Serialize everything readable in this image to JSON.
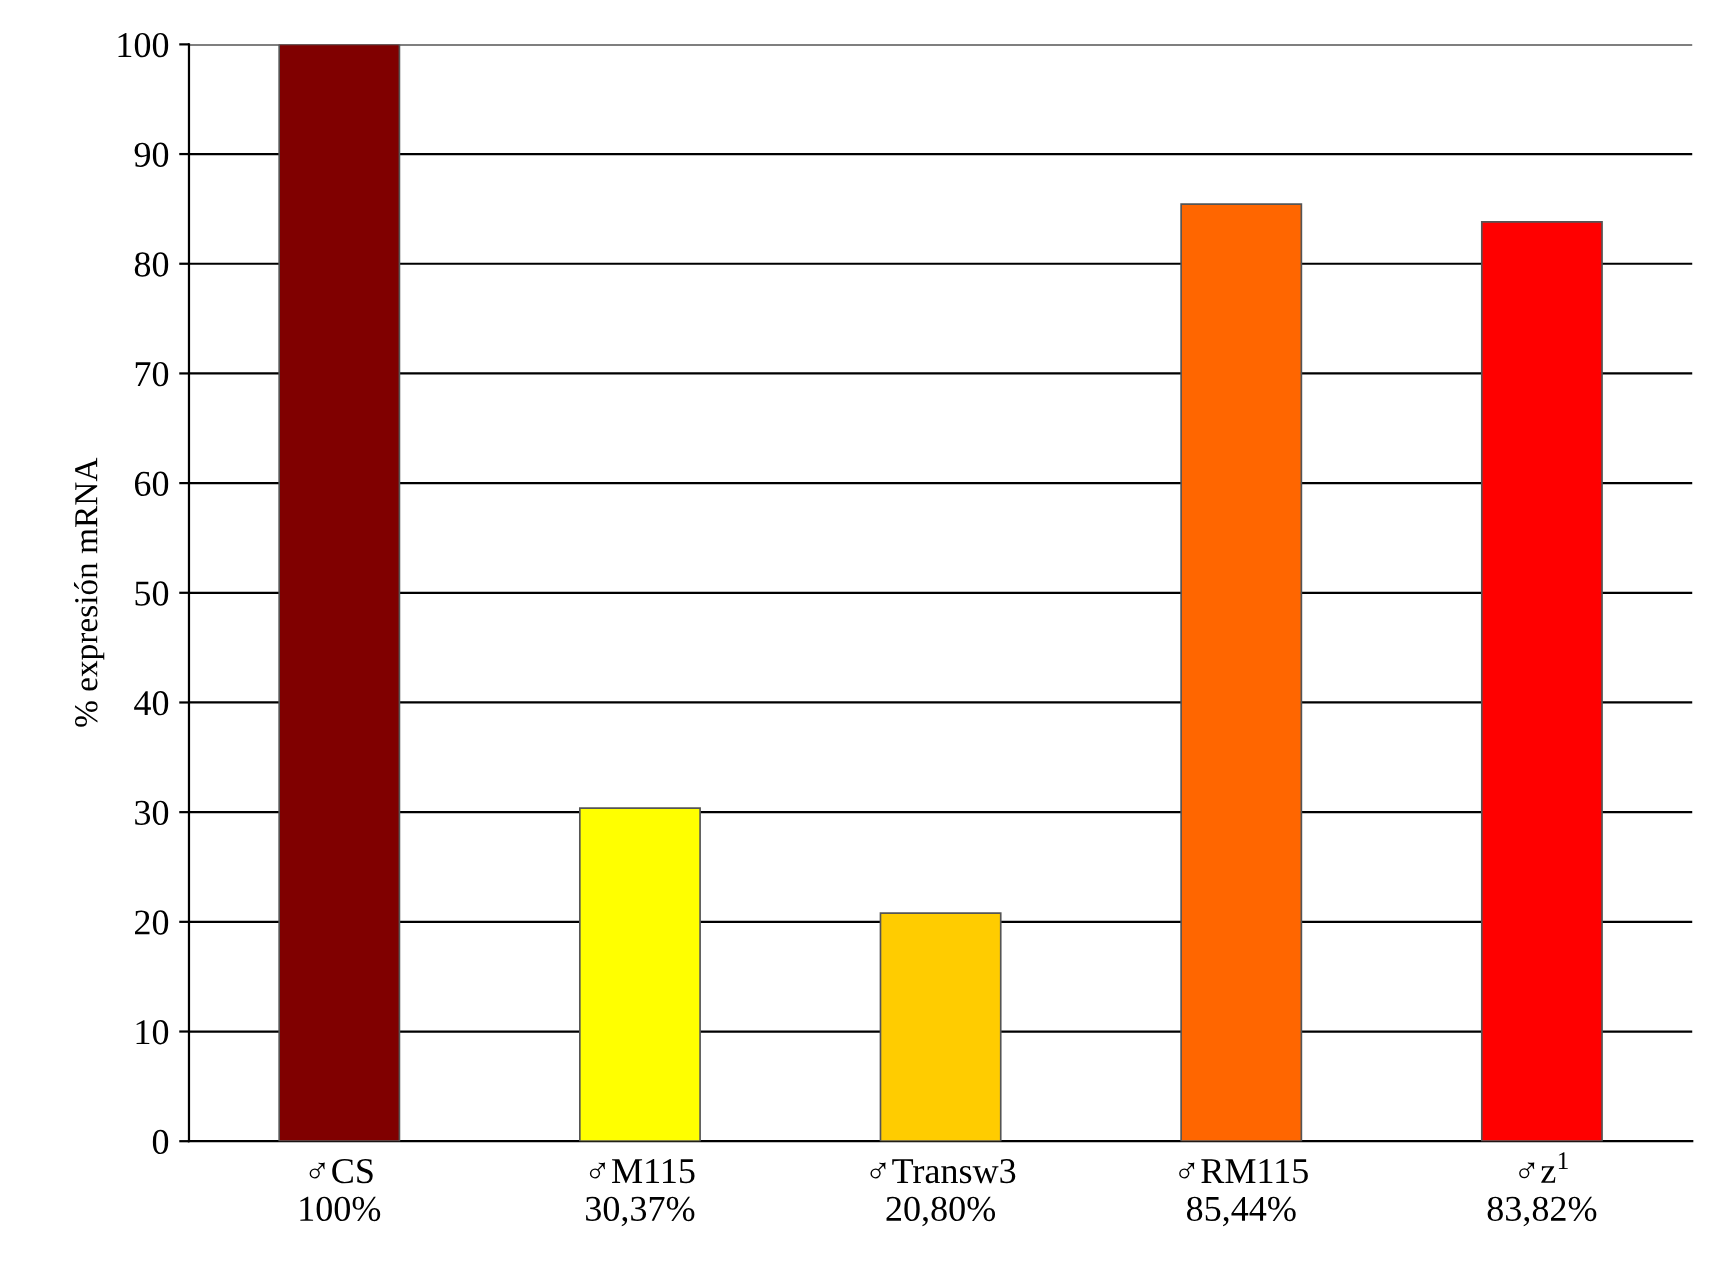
{
  "chart_data": {
    "type": "bar",
    "ylabel": "% expresión mRNA",
    "categories": [
      "♂CS\n100%",
      "♂M115\n30,37%",
      "♂Transw3\n20,80%",
      "♂RM115\n85,44%",
      "♂z$^{1}$\n83,82%"
    ],
    "values": [
      100,
      30.37,
      20.8,
      85.44,
      83.82
    ],
    "colors": [
      "#800000",
      "#ffff00",
      "#ffcc00",
      "#ff6600",
      "#ff0000"
    ],
    "ylim": [
      0,
      100
    ],
    "yticks": [
      0,
      10,
      20,
      30,
      40,
      50,
      60,
      70,
      80,
      90,
      100
    ],
    "grid": "y",
    "legend": false
  }
}
